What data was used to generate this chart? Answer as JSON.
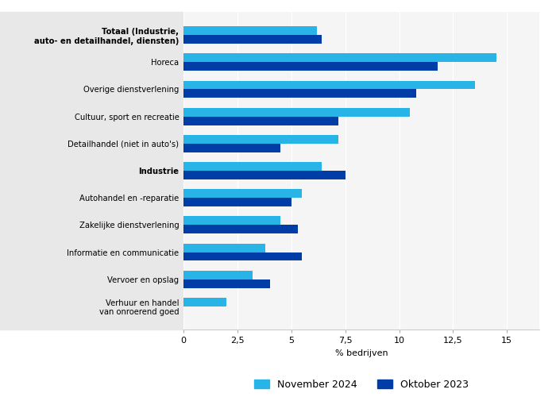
{
  "categories": [
    "Totaal (Industrie,\nauto- en detailhandel, diensten)",
    "Horeca",
    "Overige dienstverlening",
    "Cultuur, sport en recreatie",
    "Detailhandel (niet in auto's)",
    "Industrie",
    "Autohandel en -reparatie",
    "Zakelijke dienstverlening",
    "Informatie en communicatie",
    "Vervoer en opslag",
    "Verhuur en handel\nvan onroerend goed"
  ],
  "nov2024": [
    6.2,
    14.5,
    13.5,
    10.5,
    7.2,
    6.4,
    5.5,
    4.5,
    3.8,
    3.2,
    2.0
  ],
  "okt2023": [
    6.4,
    11.8,
    10.8,
    7.2,
    4.5,
    7.5,
    5.0,
    5.3,
    5.5,
    4.0,
    0.0
  ],
  "color_nov": "#29B4E8",
  "color_okt": "#003DA6",
  "xlabel": "% bedrijven",
  "xlim": [
    0,
    16.5
  ],
  "xticks": [
    0,
    2.5,
    5,
    7.5,
    10,
    12.5,
    15
  ],
  "xtick_labels": [
    "0",
    "2,5",
    "5",
    "7,5",
    "10",
    "12,5",
    "15"
  ],
  "legend_nov": "November 2024",
  "legend_okt": "Oktober 2023",
  "label_bg_color": "#e8e8e8",
  "plot_bg_color": "#f5f5f5",
  "bar_height": 0.32,
  "bold_categories": [
    "Totaal (Industrie,\nauto- en detailhandel, diensten)",
    "Industrie"
  ]
}
